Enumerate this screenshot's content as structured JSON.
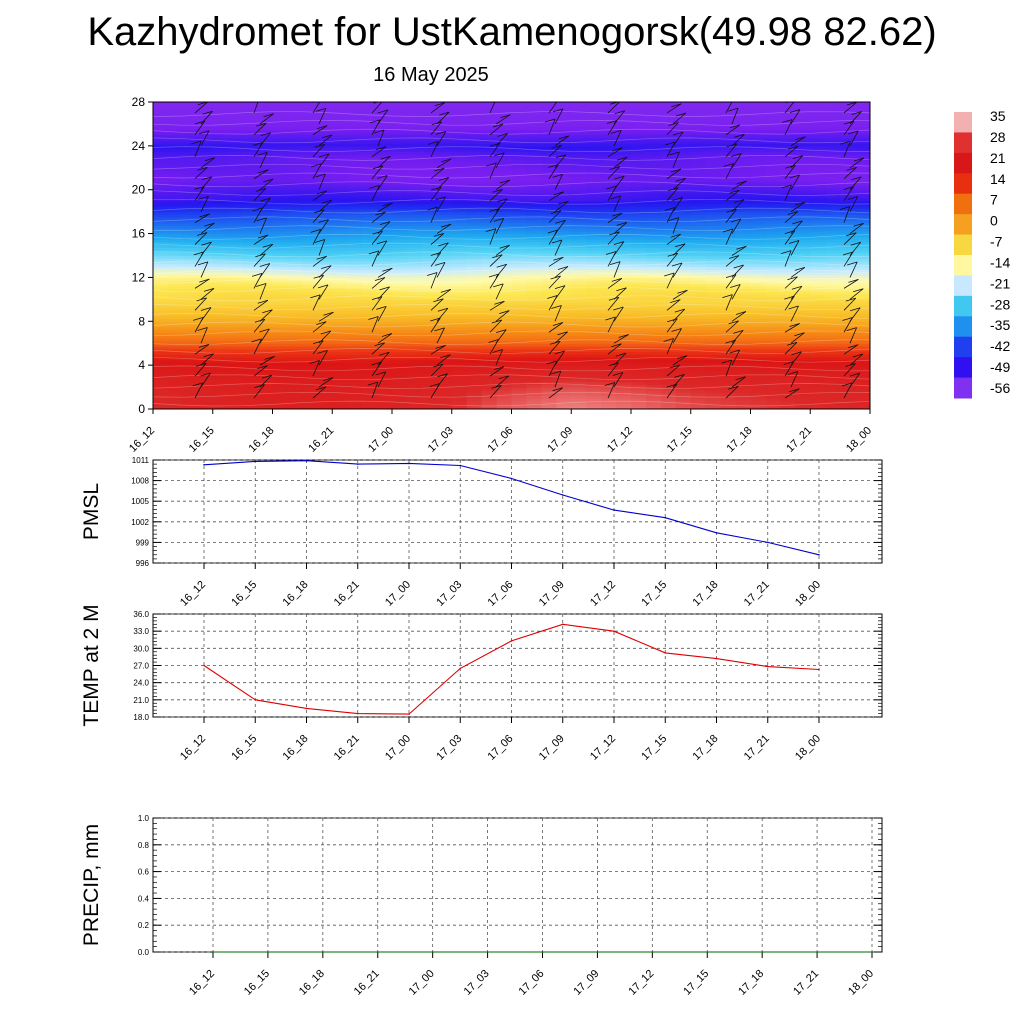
{
  "header": {
    "title": "Kazhydromet for UstKamenogorsk(49.98 82.62)",
    "subtitle": "16 May 2025"
  },
  "colorbar": {
    "labels": [
      "35",
      "28",
      "21",
      "14",
      "7",
      "0",
      "-7",
      "-14",
      "-21",
      "-28",
      "-35",
      "-42",
      "-49",
      "-56"
    ],
    "colors_top_to_bottom": [
      "#f2b0b0",
      "#e03030",
      "#d81818",
      "#e83010",
      "#f07010",
      "#f5a020",
      "#f8d840",
      "#fff8a0",
      "#c8e8ff",
      "#40c8f0",
      "#2090f0",
      "#2040f0",
      "#3010f0",
      "#8030f0"
    ]
  },
  "chart_data": [
    {
      "type": "heatmap",
      "name": "vertical-temperature-cross-section",
      "x": [
        "16_12",
        "16_15",
        "16_18",
        "16_21",
        "17_00",
        "17_03",
        "17_06",
        "17_09",
        "17_12",
        "17_15",
        "17_18",
        "17_21",
        "18_00"
      ],
      "y_ticks": [
        "0",
        "4",
        "8",
        "12",
        "16",
        "20",
        "24",
        "28"
      ],
      "ylim": [
        0,
        28
      ],
      "levels": [
        0,
        4,
        6,
        8,
        10,
        12,
        13,
        14,
        16,
        18,
        19,
        21,
        23,
        24,
        26,
        28
      ],
      "values_near_surface_0km": [
        28,
        26,
        25,
        25,
        26,
        28,
        31,
        33,
        32,
        30,
        29,
        28,
        27
      ],
      "values_by_level": [
        28,
        20,
        10,
        2,
        -5,
        -10,
        -15,
        -20,
        -30,
        -40,
        -50,
        -56,
        -54,
        -50,
        -58,
        -60
      ],
      "grid": false,
      "wind_barbs": true,
      "colorbar_position": "right"
    },
    {
      "type": "line",
      "name": "pmsl",
      "ylabel": "PMSL",
      "categories": [
        "16_12",
        "16_15",
        "16_18",
        "16_21",
        "17_00",
        "17_03",
        "17_06",
        "17_09",
        "17_12",
        "17_15",
        "17_18",
        "17_21",
        "18_00"
      ],
      "series": [
        {
          "values": [
            1010.3,
            1010.8,
            1010.9,
            1010.4,
            1010.5,
            1010.2,
            1008.3,
            1005.9,
            1003.7,
            1002.6,
            1000.4,
            999.0,
            997.2
          ],
          "color": "#0000cc"
        }
      ],
      "y_ticks": [
        "996",
        "999",
        "1002",
        "1005",
        "1008",
        "1011"
      ],
      "ylim": [
        996,
        1011
      ],
      "grid": true
    },
    {
      "type": "line",
      "name": "temp-2m",
      "ylabel": "TEMP at 2 M",
      "categories": [
        "16_12",
        "16_15",
        "16_18",
        "16_21",
        "17_00",
        "17_03",
        "17_06",
        "17_09",
        "17_12",
        "17_15",
        "17_18",
        "17_21",
        "18_00"
      ],
      "series": [
        {
          "values": [
            27.0,
            21.0,
            19.5,
            18.6,
            18.5,
            26.5,
            31.3,
            34.2,
            33.0,
            29.2,
            28.2,
            26.8,
            26.3
          ],
          "color": "#dd0000"
        }
      ],
      "y_ticks": [
        "18.0",
        "21.0",
        "24.0",
        "27.0",
        "30.0",
        "33.0",
        "36.0"
      ],
      "ylim": [
        18,
        36
      ],
      "grid": true
    },
    {
      "type": "line",
      "name": "precip",
      "ylabel": "PRECIP, mm",
      "categories": [
        "16_12",
        "16_15",
        "16_18",
        "16_21",
        "17_00",
        "17_03",
        "17_06",
        "17_09",
        "17_12",
        "17_15",
        "17_18",
        "17_21",
        "18_00"
      ],
      "series": [
        {
          "values": [
            0,
            0,
            0,
            0,
            0,
            0,
            0,
            0,
            0,
            0,
            0,
            0,
            0
          ],
          "color": "#006400"
        }
      ],
      "y_ticks": [
        "0.0",
        "0.2",
        "0.4",
        "0.6",
        "0.8",
        "1.0"
      ],
      "ylim": [
        0,
        1
      ],
      "grid": true
    }
  ]
}
